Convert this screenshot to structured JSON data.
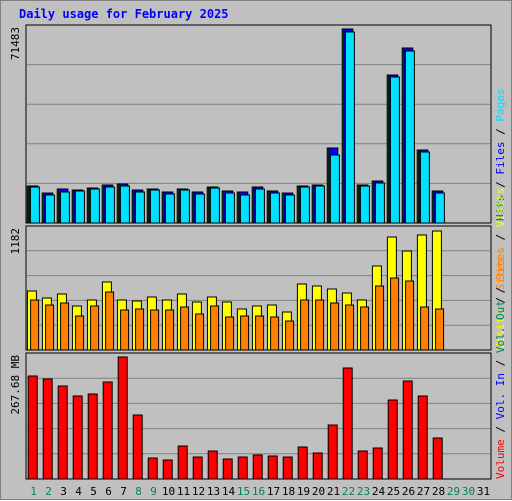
{
  "title": "Daily usage for February 2025",
  "colors": {
    "background": "#c0c0c0",
    "title": "#0000ff",
    "hits": "#00805c",
    "files": "#0000ff",
    "pages": "#00e0ff",
    "visits": "#ffff00",
    "sites": "#ff8000",
    "kbytes": "#ff0000",
    "weekend_label": "#00805c",
    "weekday_label": "#000000"
  },
  "legend": {
    "top": [
      {
        "text": "Hits",
        "color": "#00805c"
      },
      {
        "text": " / ",
        "color": "#000000"
      },
      {
        "text": "Files",
        "color": "#0000ff"
      },
      {
        "text": " / ",
        "color": "#000000"
      },
      {
        "text": "Pages",
        "color": "#00e0ff"
      }
    ],
    "middle": [
      {
        "text": "Visits",
        "color": "#ffff00"
      },
      {
        "text": " / ",
        "color": "#000000"
      },
      {
        "text": "Sites",
        "color": "#ff8000"
      }
    ],
    "bottom_full": [
      {
        "text": "Volume",
        "color": "#ff0000"
      },
      {
        "text": " / ",
        "color": "#000000"
      },
      {
        "text": "Vol. In",
        "color": "#0000ff"
      },
      {
        "text": " / ",
        "color": "#000000"
      },
      {
        "text": "Vol. Out",
        "color": "#00805c"
      },
      {
        "text": " / ",
        "color": "#000000"
      },
      {
        "text": "Sites",
        "color": "#ff8000"
      },
      {
        "text": " / ",
        "color": "#000000"
      },
      {
        "text": "Visits",
        "color": "#ffff00"
      },
      {
        "text": " / ",
        "color": "#000000"
      },
      {
        "text": "Pages",
        "color": "#00e0ff"
      },
      {
        "text": " / ",
        "color": "#000000"
      },
      {
        "text": "Files",
        "color": "#0000ff"
      },
      {
        "text": " / ",
        "color": "#000000"
      },
      {
        "text": "Hits",
        "color": "#00805c"
      }
    ]
  },
  "chart_data": [
    {
      "type": "bar",
      "panel": "hits-files-pages",
      "ymax_label": "71483",
      "ylim": [
        0,
        71483
      ],
      "x": [
        1,
        2,
        3,
        4,
        5,
        6,
        7,
        8,
        9,
        10,
        11,
        12,
        13,
        14,
        15,
        16,
        17,
        18,
        19,
        20,
        21,
        22,
        23,
        24,
        25,
        26,
        27,
        28
      ],
      "series": [
        {
          "name": "Hits",
          "values": [
            13600,
            11200,
            12600,
            12000,
            13000,
            14000,
            14200,
            12100,
            12500,
            11400,
            12700,
            11300,
            13200,
            11700,
            11400,
            13200,
            11700,
            11000,
            13700,
            14100,
            27800,
            71400,
            14000,
            15400,
            54700,
            64400,
            27000,
            11700
          ]
        },
        {
          "name": "Files",
          "values": [
            13600,
            11200,
            12600,
            12000,
            13000,
            14000,
            14200,
            12100,
            12500,
            11400,
            12700,
            11300,
            13200,
            11700,
            11400,
            13200,
            11700,
            11000,
            13700,
            14100,
            27800,
            71400,
            14000,
            15400,
            54700,
            64400,
            27000,
            11700
          ]
        },
        {
          "name": "Pages",
          "values": [
            13100,
            10500,
            11600,
            11700,
            12600,
            13400,
            13600,
            11400,
            12300,
            10800,
            12300,
            10700,
            12900,
            11100,
            10500,
            12600,
            10900,
            10300,
            13100,
            13600,
            25100,
            70200,
            13600,
            14900,
            53800,
            63200,
            26100,
            11100
          ]
        }
      ]
    },
    {
      "type": "bar",
      "panel": "visits-sites",
      "ymax_label": "1182",
      "ylim": [
        0,
        1182
      ],
      "x": [
        1,
        2,
        3,
        4,
        5,
        6,
        7,
        8,
        9,
        10,
        11,
        12,
        13,
        14,
        15,
        16,
        17,
        18,
        19,
        20,
        21,
        22,
        23,
        24,
        25,
        26,
        27,
        28
      ],
      "series": [
        {
          "name": "Visits",
          "values": [
            583,
            508,
            555,
            433,
            495,
            665,
            497,
            482,
            525,
            495,
            555,
            473,
            525,
            470,
            405,
            438,
            440,
            372,
            652,
            630,
            605,
            562,
            494,
            826,
            1113,
            979,
            1132,
            1172
          ]
        },
        {
          "name": "Sites",
          "values": [
            497,
            448,
            465,
            337,
            438,
            567,
            398,
            405,
            398,
            398,
            420,
            355,
            432,
            325,
            336,
            330,
            325,
            281,
            497,
            497,
            459,
            440,
            426,
            630,
            710,
            682,
            426,
            405
          ]
        }
      ]
    },
    {
      "type": "bar",
      "panel": "volume",
      "ymax_label": "267.68 MB",
      "ylim": [
        0,
        267.68
      ],
      "x": [
        1,
        2,
        3,
        4,
        5,
        6,
        7,
        8,
        9,
        10,
        11,
        12,
        13,
        14,
        15,
        16,
        17,
        18,
        19,
        20,
        21,
        22,
        23,
        24,
        25,
        26,
        27,
        28
      ],
      "series": [
        {
          "name": "Volume",
          "values": [
            227,
            220,
            203,
            183,
            187,
            212,
            267,
            141,
            47,
            41,
            72,
            48,
            61,
            44,
            48,
            52,
            51,
            48,
            70,
            57,
            119,
            243,
            62,
            68,
            173,
            215,
            182,
            91
          ]
        }
      ]
    }
  ],
  "day_labels": [
    {
      "text": "1",
      "weekend": true
    },
    {
      "text": "2",
      "weekend": true
    },
    {
      "text": "3",
      "weekend": false
    },
    {
      "text": "4",
      "weekend": false
    },
    {
      "text": "5",
      "weekend": false
    },
    {
      "text": "6",
      "weekend": false
    },
    {
      "text": "7",
      "weekend": false
    },
    {
      "text": "8",
      "weekend": true
    },
    {
      "text": "9",
      "weekend": true
    },
    {
      "text": "10",
      "weekend": false
    },
    {
      "text": "11",
      "weekend": false
    },
    {
      "text": "12",
      "weekend": false
    },
    {
      "text": "13",
      "weekend": false
    },
    {
      "text": "14",
      "weekend": false
    },
    {
      "text": "15",
      "weekend": true
    },
    {
      "text": "16",
      "weekend": true
    },
    {
      "text": "17",
      "weekend": false
    },
    {
      "text": "18",
      "weekend": false
    },
    {
      "text": "19",
      "weekend": false
    },
    {
      "text": "20",
      "weekend": false
    },
    {
      "text": "21",
      "weekend": false
    },
    {
      "text": "22",
      "weekend": true
    },
    {
      "text": "23",
      "weekend": true
    },
    {
      "text": "24",
      "weekend": false
    },
    {
      "text": "25",
      "weekend": false
    },
    {
      "text": "26",
      "weekend": false
    },
    {
      "text": "27",
      "weekend": false
    },
    {
      "text": "28",
      "weekend": false
    },
    {
      "text": "29",
      "weekend": true
    },
    {
      "text": "30",
      "weekend": true
    },
    {
      "text": "31",
      "weekend": false
    }
  ]
}
